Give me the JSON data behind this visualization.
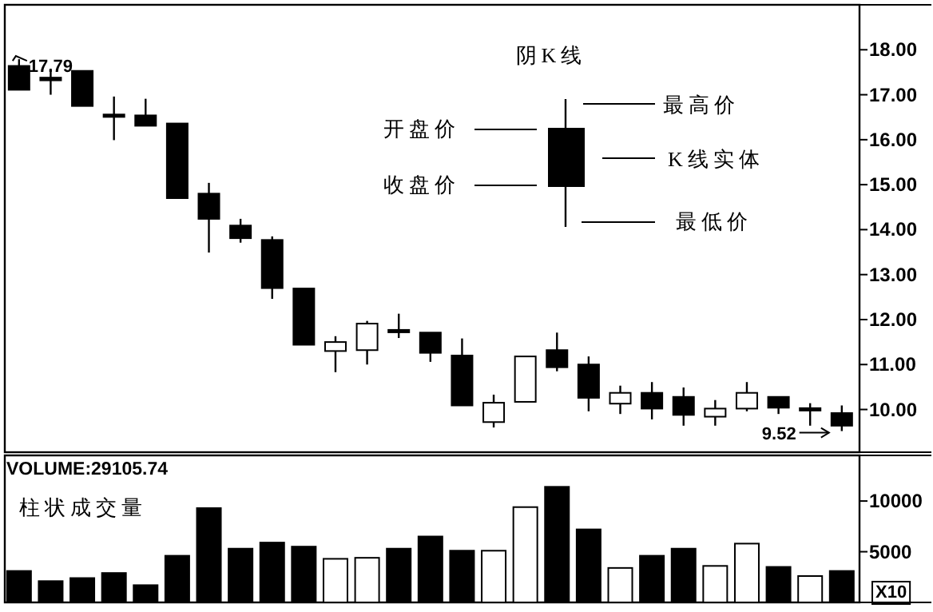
{
  "chart_data": [
    {
      "type": "candlestick",
      "color": "#000000",
      "tick_labels": "y",
      "categories": [
        null,
        null,
        null,
        null,
        null,
        null,
        null,
        null,
        null,
        null,
        null,
        null,
        null,
        null,
        null,
        null,
        null,
        null,
        null,
        null,
        null,
        null,
        null,
        null,
        null,
        null,
        null
      ],
      "ohlc": [
        [
          17.64,
          17.79,
          17.11,
          17.11
        ],
        [
          17.38,
          17.58,
          17.0,
          17.32
        ],
        [
          17.53,
          17.53,
          16.75,
          16.75
        ],
        [
          16.56,
          16.96,
          15.99,
          16.52
        ],
        [
          16.54,
          16.91,
          16.3,
          16.31
        ],
        [
          16.36,
          16.36,
          14.7,
          14.7
        ],
        [
          14.8,
          15.04,
          13.49,
          14.24
        ],
        [
          14.09,
          14.24,
          13.71,
          13.81
        ],
        [
          13.77,
          13.85,
          12.46,
          12.7
        ],
        [
          12.69,
          12.69,
          11.44,
          11.44
        ],
        [
          11.3,
          11.63,
          10.83,
          11.5
        ],
        [
          11.32,
          11.97,
          11.0,
          11.91
        ],
        [
          11.77,
          12.13,
          11.59,
          11.73
        ],
        [
          11.71,
          11.71,
          11.06,
          11.26
        ],
        [
          11.2,
          11.58,
          10.09,
          10.09
        ],
        [
          9.72,
          10.33,
          9.6,
          10.15
        ],
        [
          10.17,
          11.18,
          10.17,
          11.18
        ],
        [
          11.32,
          11.71,
          10.85,
          10.94
        ],
        [
          11.0,
          11.18,
          9.96,
          10.26
        ],
        [
          10.13,
          10.53,
          9.9,
          10.37
        ],
        [
          10.37,
          10.61,
          9.78,
          10.02
        ],
        [
          10.28,
          10.49,
          9.64,
          9.88
        ],
        [
          9.84,
          10.21,
          9.64,
          10.02
        ],
        [
          10.02,
          10.61,
          9.96,
          10.37
        ],
        [
          10.28,
          10.28,
          9.9,
          10.04
        ],
        [
          10.03,
          10.14,
          9.64,
          10.01
        ],
        [
          9.92,
          10.09,
          9.52,
          9.64
        ]
      ],
      "ylim": [
        9.05,
        19.0
      ],
      "yticks": [
        {
          "value": 10,
          "label": "10.00"
        },
        {
          "value": 11,
          "label": "11.00"
        },
        {
          "value": 12,
          "label": "12.00"
        },
        {
          "value": 13,
          "label": "13.00"
        },
        {
          "value": 14,
          "label": "14.00"
        },
        {
          "value": 15,
          "label": "15.00"
        },
        {
          "value": 16,
          "label": "16.00"
        },
        {
          "value": 17,
          "label": "17.00"
        },
        {
          "value": 18,
          "label": "18.00"
        }
      ],
      "annotations": [
        "阴K线",
        "开盘价",
        "收盘价",
        "最高价",
        "K线实体",
        "最低价",
        "17.79",
        "9.52"
      ]
    },
    {
      "type": "bar",
      "title": "VOLUME:29105.74",
      "tick_labels": "y",
      "categories": [
        null,
        null,
        null,
        null,
        null,
        null,
        null,
        null,
        null,
        null,
        null,
        null,
        null,
        null,
        null,
        null,
        null,
        null,
        null,
        null,
        null,
        null,
        null,
        null,
        null,
        null,
        null
      ],
      "values": [
        3100,
        2100,
        2400,
        2900,
        1700,
        4600,
        9300,
        5300,
        5900,
        5500,
        4300,
        4400,
        5300,
        6500,
        5100,
        5100,
        9400,
        11400,
        7200,
        3400,
        4600,
        5300,
        3600,
        5800,
        3500,
        2600,
        3100
      ],
      "colors": [
        "#000000",
        "#000000",
        "#000000",
        "#000000",
        "#000000",
        "#000000",
        "#000000",
        "#000000",
        "#000000",
        "#000000",
        "#ffffff",
        "#ffffff",
        "#000000",
        "#000000",
        "#000000",
        "#ffffff",
        "#ffffff",
        "#000000",
        "#000000",
        "#ffffff",
        "#000000",
        "#000000",
        "#ffffff",
        "#ffffff",
        "#000000",
        "#ffffff",
        "#000000"
      ],
      "ylim": [
        0,
        14500
      ],
      "yticks": [
        5000,
        10000
      ],
      "annotations": [
        "柱状成交量",
        "X10"
      ]
    }
  ]
}
